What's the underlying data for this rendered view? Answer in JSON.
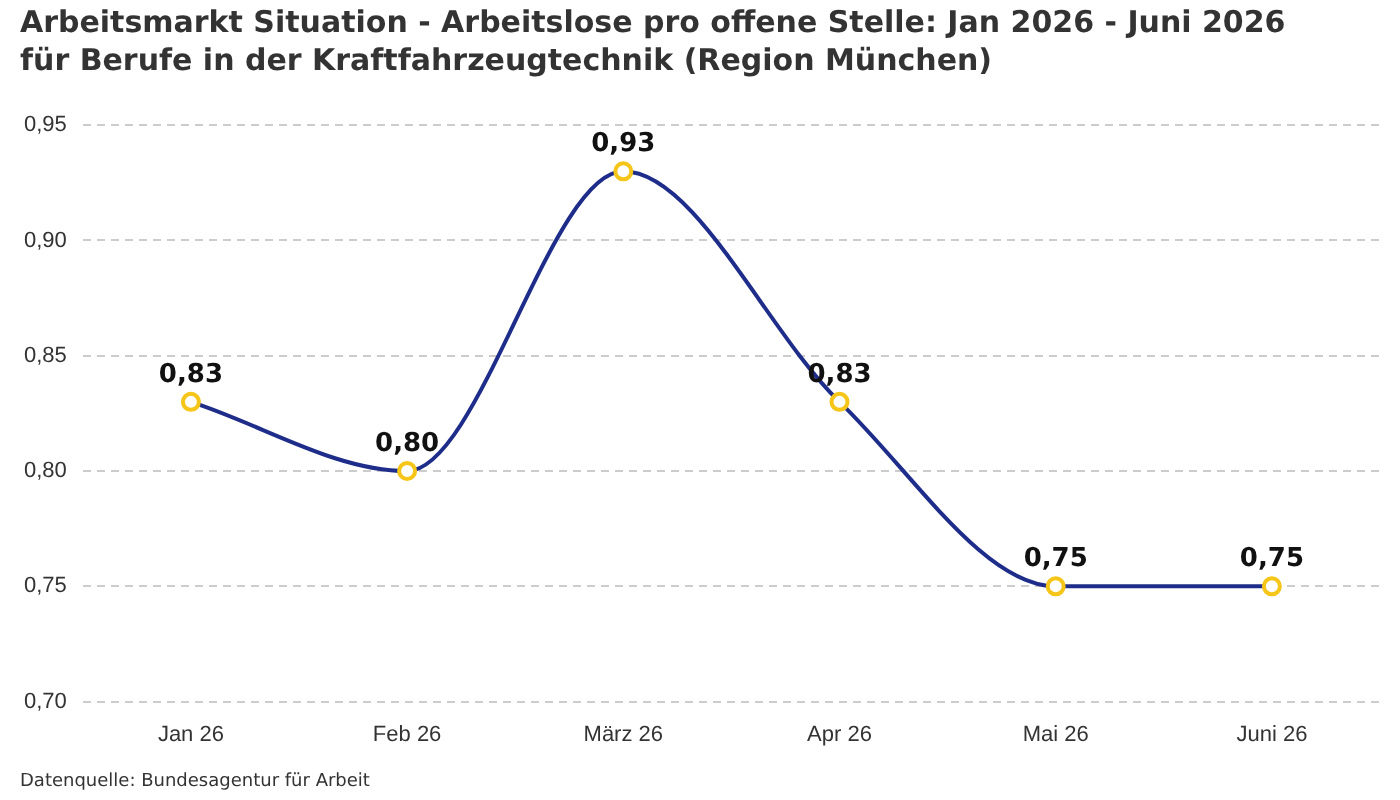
{
  "chart_data": {
    "type": "line",
    "title": "Arbeitsmarkt Situation - Arbeitslose pro offene Stelle: Jan 2026 - Juni 2026 für Berufe in der Kraftfahrzeugtechnik (Region München)",
    "categories": [
      "Jan 26",
      "Feb 26",
      "März 26",
      "Apr 26",
      "Mai 26",
      "Juni 26"
    ],
    "series": [
      {
        "color": "#1f2d8a",
        "values": [
          0.83,
          0.8,
          0.93,
          0.83,
          0.75,
          0.75
        ],
        "value_labels": [
          "0,83",
          "0,80",
          "0,93",
          "0,83",
          "0,75",
          "0,75"
        ]
      }
    ],
    "ylim": [
      0.7,
      0.95
    ],
    "yticks": [
      {
        "value": 0.7,
        "label": "0,70"
      },
      {
        "value": 0.75,
        "label": "0,75"
      },
      {
        "value": 0.8,
        "label": "0,80"
      },
      {
        "value": 0.85,
        "label": "0,85"
      },
      {
        "value": 0.9,
        "label": "0,90"
      },
      {
        "value": 0.95,
        "label": "0,95"
      }
    ],
    "grid": "y",
    "legend": false,
    "marker": "circle",
    "line_style": "solid",
    "annotations": [
      "Datenquelle: Bundesagentur für Arbeit"
    ]
  }
}
